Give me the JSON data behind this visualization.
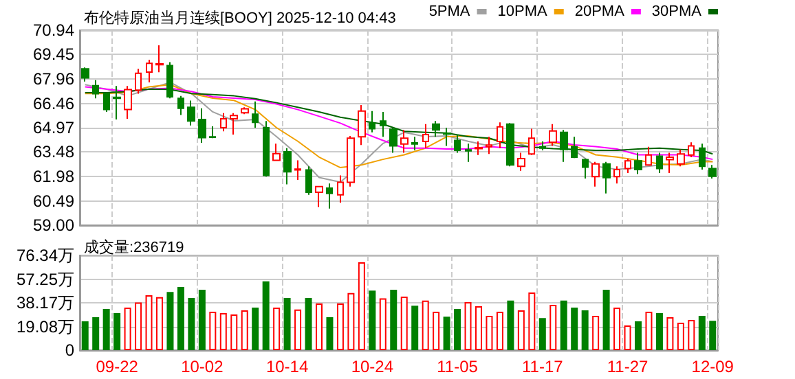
{
  "chart_data": [
    {
      "type": "candlestick",
      "title": "布伦特原油当月连续[BOOY] 2025-12-10 04:43",
      "categories": [
        null,
        null,
        null,
        null,
        null,
        null,
        null,
        null,
        null,
        null,
        null,
        null,
        null,
        null,
        null,
        null,
        null,
        null,
        null,
        null,
        null,
        null,
        null,
        null,
        null,
        null,
        null,
        null,
        null,
        null,
        null,
        null,
        null,
        null,
        null,
        null,
        null,
        null,
        null,
        null,
        null,
        null,
        null,
        null,
        null,
        null,
        null,
        null,
        null,
        null,
        null,
        null,
        null,
        null,
        null,
        null,
        null,
        null,
        null,
        null
      ],
      "ylim": [
        59.0,
        70.94
      ],
      "yticks": [
        {
          "value": 59,
          "label": "59.00"
        },
        60.49,
        61.98,
        63.48,
        64.97,
        66.46,
        67.96,
        69.45,
        70.94
      ],
      "grid": true,
      "legend": "top right",
      "tick_labels": "y",
      "marker": "none",
      "series": [
        {
          "type": "candlestick",
          "ohlc": [
            [
              68.58,
              68.66,
              67.8,
              68.02
            ],
            [
              67.55,
              67.88,
              66.77,
              67.05
            ],
            [
              67.05,
              67.11,
              65.94,
              66.08
            ],
            [
              66.83,
              67.52,
              65.47,
              66.77
            ],
            [
              66.08,
              67.52,
              65.52,
              67.3
            ],
            [
              67.27,
              68.58,
              67.05,
              68.3
            ],
            [
              68.38,
              69.13,
              67.75,
              68.91
            ],
            [
              68.83,
              70.02,
              68.36,
              68.88
            ],
            [
              68.77,
              68.99,
              66.77,
              66.86
            ],
            [
              66.77,
              66.91,
              65.75,
              66.16
            ],
            [
              66.22,
              66.63,
              65.11,
              65.38
            ],
            [
              65.47,
              66.16,
              64.05,
              64.36
            ],
            [
              64.41,
              65.05,
              64.33,
              64.38
            ],
            [
              64.97,
              65.86,
              64.75,
              65.52
            ],
            [
              65.52,
              65.86,
              64.55,
              65.72
            ],
            [
              65.88,
              66.22,
              65.8,
              66.13
            ],
            [
              65.8,
              66.58,
              64.97,
              65.3
            ],
            [
              64.97,
              65.38,
              61.97,
              62.05
            ],
            [
              62.97,
              63.99,
              62.97,
              63.38
            ],
            [
              63.5,
              63.72,
              61.5,
              62.27
            ],
            [
              62.38,
              62.97,
              61.77,
              62.44
            ],
            [
              62.38,
              62.61,
              60.86,
              61.02
            ],
            [
              61.02,
              61.41,
              60.11,
              61.36
            ],
            [
              61.27,
              61.55,
              60.02,
              60.94
            ],
            [
              60.86,
              62.05,
              60.38,
              61.63
            ],
            [
              61.63,
              64.47,
              61.36,
              64.33
            ],
            [
              64.41,
              66.36,
              63.91,
              65.99
            ],
            [
              65.25,
              65.99,
              64.69,
              64.91
            ],
            [
              65.38,
              65.94,
              64.41,
              65.11
            ],
            [
              64.88,
              64.97,
              63.44,
              63.86
            ],
            [
              63.97,
              64.83,
              63.44,
              64.33
            ],
            [
              64.05,
              64.41,
              63.58,
              63.97
            ],
            [
              64.13,
              65.19,
              63.72,
              64.55
            ],
            [
              65.19,
              65.38,
              64.41,
              64.83
            ],
            [
              64.63,
              64.97,
              63.86,
              64.58
            ],
            [
              64.19,
              64.55,
              63.44,
              63.58
            ],
            [
              63.61,
              63.99,
              62.88,
              63.55
            ],
            [
              63.69,
              64.13,
              63.3,
              63.75
            ],
            [
              63.8,
              64.41,
              63.36,
              63.91
            ],
            [
              64.13,
              65.3,
              63.72,
              65.02
            ],
            [
              65.19,
              65.25,
              62.61,
              62.69
            ],
            [
              62.61,
              63.44,
              62.33,
              63.08
            ],
            [
              63.36,
              64.91,
              63.3,
              64.33
            ],
            [
              63.8,
              64.13,
              63.58,
              63.72
            ],
            [
              64.08,
              65.19,
              63.86,
              64.77
            ],
            [
              64.69,
              64.83,
              62.88,
              63.64
            ],
            [
              63.8,
              64.41,
              63.11,
              63.16
            ],
            [
              63.02,
              63.08,
              61.86,
              62.55
            ],
            [
              61.97,
              62.88,
              61.36,
              62.75
            ],
            [
              62.75,
              62.88,
              60.94,
              61.91
            ],
            [
              61.97,
              62.61,
              61.55,
              62.41
            ],
            [
              62.47,
              63.08,
              62.19,
              62.94
            ],
            [
              62.94,
              63.44,
              62.13,
              62.41
            ],
            [
              62.69,
              63.8,
              62.69,
              63.3
            ],
            [
              63.22,
              63.44,
              62.19,
              62.47
            ],
            [
              63.02,
              63.44,
              62.19,
              63.16
            ],
            [
              62.75,
              63.64,
              62.61,
              63.36
            ],
            [
              63.3,
              64.08,
              63.16,
              63.86
            ],
            [
              63.72,
              63.99,
              62.41,
              62.61
            ],
            [
              62.47,
              62.69,
              61.86,
              62.0
            ]
          ],
          "colors": [
            "#008000",
            "#008000",
            "#008000",
            "#008000",
            "#ff0000",
            "#ff0000",
            "#ff0000",
            "#ff0000",
            "#008000",
            "#008000",
            "#008000",
            "#008000",
            "#008000",
            "#ff0000",
            "#ff0000",
            "#ff0000",
            "#008000",
            "#008000",
            "#ff0000",
            "#008000",
            "#ff0000",
            "#008000",
            "#ff0000",
            "#008000",
            "#ff0000",
            "#ff0000",
            "#ff0000",
            "#008000",
            "#008000",
            "#008000",
            "#ff0000",
            "#008000",
            "#ff0000",
            "#008000",
            "#008000",
            "#008000",
            "#008000",
            "#ff0000",
            "#ff0000",
            "#ff0000",
            "#008000",
            "#ff0000",
            "#ff0000",
            "#008000",
            "#ff0000",
            "#008000",
            "#008000",
            "#008000",
            "#ff0000",
            "#008000",
            "#ff0000",
            "#ff0000",
            "#008000",
            "#ff0000",
            "#008000",
            "#ff0000",
            "#ff0000",
            "#ff0000",
            "#008000",
            "#008000"
          ]
        },
        {
          "type": "line",
          "name": "5PMA",
          "color": "#a0a0a0",
          "values": [
            67.61,
            null,
            67.33,
            null,
            66.92,
            null,
            67.33,
            null,
            67.75,
            null,
            67.06,
            null,
            65.94,
            null,
            65.39,
            null,
            65.47,
            null,
            64.42,
            null,
            63.31,
            null,
            61.92,
            null,
            61.64,
            null,
            62.75,
            null,
            64.0,
            null,
            64.69,
            null,
            64.42,
            null,
            64.47,
            null,
            64.14,
            null,
            63.86,
            null,
            64.19,
            null,
            63.72,
            null,
            63.92,
            null,
            63.58,
            null,
            62.61,
            null,
            62.42,
            null,
            62.53,
            null,
            62.69,
            null,
            62.75,
            null,
            63.03,
            62.89
          ]
        },
        {
          "type": "line",
          "name": "10PMA",
          "color": "#f0a000",
          "values": [
            67.06,
            null,
            67.06,
            null,
            67.14,
            null,
            67.47,
            null,
            67.61,
            null,
            67.06,
            null,
            66.78,
            null,
            66.64,
            null,
            66.08,
            null,
            64.97,
            null,
            64.14,
            null,
            63.17,
            null,
            62.53,
            null,
            62.69,
            null,
            63.03,
            null,
            63.31,
            null,
            63.72,
            null,
            64.42,
            null,
            64.47,
            null,
            64.28,
            null,
            64.08,
            null,
            64.0,
            null,
            64.06,
            null,
            63.86,
            null,
            63.31,
            null,
            63.17,
            null,
            62.97,
            null,
            62.75,
            null,
            62.69,
            null,
            62.89,
            62.89
          ]
        },
        {
          "type": "line",
          "name": "20PMA",
          "color": "#ff00ff",
          "values": [
            67.47,
            null,
            67.33,
            null,
            67.19,
            null,
            67.33,
            null,
            67.39,
            null,
            67.19,
            null,
            66.86,
            null,
            66.78,
            null,
            66.69,
            null,
            66.42,
            null,
            66.08,
            null,
            65.67,
            null,
            65.25,
            null,
            64.69,
            null,
            64.19,
            null,
            63.72,
            null,
            63.72,
            null,
            63.67,
            null,
            63.67,
            null,
            63.81,
            null,
            63.72,
            null,
            63.86,
            null,
            64.14,
            null,
            63.92,
            null,
            63.81,
            null,
            63.67,
            null,
            63.31,
            null,
            63.31,
            null,
            63.31,
            null,
            63.17,
            63.03
          ]
        },
        {
          "type": "line",
          "name": "30PMA",
          "color": "#006400",
          "values": [
            67.11,
            null,
            67.11,
            null,
            67.19,
            null,
            67.33,
            null,
            67.31,
            null,
            67.06,
            null,
            67.0,
            null,
            66.92,
            null,
            66.75,
            null,
            66.5,
            null,
            66.22,
            null,
            65.94,
            null,
            65.61,
            null,
            65.39,
            null,
            65.19,
            null,
            64.75,
            null,
            64.69,
            null,
            64.64,
            null,
            64.42,
            null,
            64.33,
            null,
            63.92,
            null,
            63.78,
            null,
            63.69,
            null,
            63.64,
            null,
            63.58,
            null,
            63.58,
            null,
            63.67,
            null,
            63.72,
            null,
            63.64,
            null,
            63.58,
            63.36
          ]
        }
      ]
    },
    {
      "type": "bar",
      "title": "成交量:236719",
      "categories": [
        null,
        null,
        null,
        "09-22",
        null,
        null,
        null,
        null,
        null,
        null,
        null,
        "10-02",
        null,
        null,
        null,
        null,
        null,
        null,
        null,
        "10-14",
        null,
        null,
        null,
        null,
        null,
        null,
        null,
        "10-24",
        null,
        null,
        null,
        null,
        null,
        null,
        null,
        "11-05",
        null,
        null,
        null,
        null,
        null,
        null,
        null,
        "11-17",
        null,
        null,
        null,
        null,
        null,
        null,
        null,
        "11-27",
        null,
        null,
        null,
        null,
        null,
        null,
        null,
        "12-09"
      ],
      "values": [
        23.2,
        26.6,
        33.2,
        29.9,
        34.3,
        38.4,
        44.3,
        42.8,
        46.9,
        50.9,
        42.1,
        48.7,
        31.0,
        29.9,
        28.8,
        32.1,
        34.3,
        55.4,
        34.3,
        42.1,
        32.8,
        42.1,
        37.6,
        26.6,
        37.6,
        46.1,
        70.8,
        48.0,
        41.7,
        48.7,
        43.2,
        35.8,
        39.9,
        31.0,
        26.9,
        33.2,
        38.7,
        35.4,
        27.7,
        31.0,
        39.9,
        32.1,
        46.5,
        25.8,
        36.5,
        39.9,
        34.3,
        32.1,
        27.7,
        48.7,
        34.3,
        19.9,
        23.2,
        31.0,
        29.9,
        26.6,
        22.1,
        24.4,
        27.7,
        23.67
      ],
      "colors": [
        "#008000",
        "#008000",
        "#008000",
        "#008000",
        "#ff0000",
        "#ff0000",
        "#ff0000",
        "#ff0000",
        "#008000",
        "#008000",
        "#008000",
        "#008000",
        "#ff0000",
        "#ff0000",
        "#ff0000",
        "#ff0000",
        "#008000",
        "#008000",
        "#ff0000",
        "#008000",
        "#ff0000",
        "#008000",
        "#ff0000",
        "#008000",
        "#ff0000",
        "#ff0000",
        "#ff0000",
        "#008000",
        "#ff0000",
        "#008000",
        "#ff0000",
        "#008000",
        "#ff0000",
        "#ff0000",
        "#008000",
        "#008000",
        "#ff0000",
        "#ff0000",
        "#ff0000",
        "#ff0000",
        "#008000",
        "#ff0000",
        "#ff0000",
        "#008000",
        "#ff0000",
        "#008000",
        "#008000",
        "#008000",
        "#ff0000",
        "#008000",
        "#ff0000",
        "#ff0000",
        "#008000",
        "#ff0000",
        "#008000",
        "#ff0000",
        "#ff0000",
        "#ff0000",
        "#008000",
        "#008000"
      ],
      "ylim": [
        0,
        76.34
      ],
      "yticks": [
        0,
        {
          "value": 19.08,
          "label": "19.08万"
        },
        {
          "value": 38.17,
          "label": "38.17万"
        },
        {
          "value": 57.25,
          "label": "57.25万"
        },
        {
          "value": 76.34,
          "label": "76.34万"
        }
      ],
      "grid": true
    }
  ]
}
